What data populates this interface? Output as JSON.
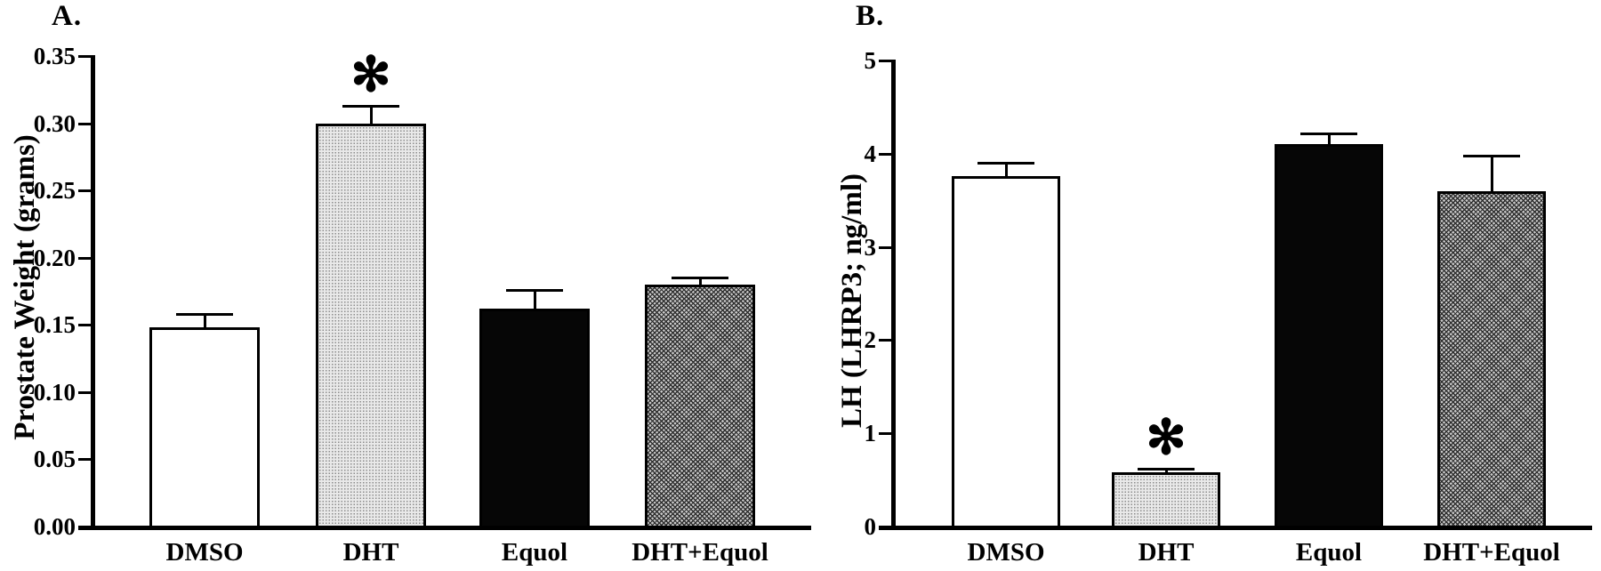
{
  "figure": {
    "background_color": "#ffffff",
    "ink_color": "#000000",
    "panel_count": 2
  },
  "chart_data": [
    {
      "type": "bar",
      "panel_label": "A.",
      "title": "",
      "xlabel": "",
      "ylabel": "Prostate Weight (grams)",
      "categories": [
        "DMSO",
        "DHT",
        "Equol",
        "DHT+Equol"
      ],
      "values": [
        0.148,
        0.3,
        0.162,
        0.18
      ],
      "errors_plus": [
        0.01,
        0.013,
        0.014,
        0.005
      ],
      "ylim": [
        0,
        0.35
      ],
      "ytick_labels": [
        "0.00",
        "0.05",
        "0.10",
        "0.15",
        "0.20",
        "0.25",
        "0.30",
        "0.35"
      ],
      "grid": false,
      "legend": "none",
      "bar_styles": [
        "white",
        "light-stipple",
        "solid-black",
        "dark-crosshatch"
      ],
      "bar_colors": [
        "#ffffff",
        "#d8d8d8",
        "#060606",
        "#7d7d7d"
      ],
      "significance": {
        "category": "DHT",
        "symbol": "✻"
      }
    },
    {
      "type": "bar",
      "panel_label": "B.",
      "title": "",
      "xlabel": "",
      "ylabel": "LH  (LHRP3; ng/ml)",
      "categories": [
        "DMSO",
        "DHT",
        "Equol",
        "DHT+Equol"
      ],
      "values": [
        3.76,
        0.58,
        4.1,
        3.6
      ],
      "errors_plus": [
        0.14,
        0.04,
        0.12,
        0.38
      ],
      "ylim": [
        0,
        5
      ],
      "ytick_labels": [
        "0",
        "1",
        "2",
        "3",
        "4",
        "5"
      ],
      "grid": false,
      "legend": "none",
      "bar_styles": [
        "white",
        "light-stipple",
        "solid-black",
        "dark-crosshatch"
      ],
      "bar_colors": [
        "#ffffff",
        "#d8d8d8",
        "#060606",
        "#7d7d7d"
      ],
      "significance": {
        "category": "DHT",
        "symbol": "✻"
      }
    }
  ]
}
